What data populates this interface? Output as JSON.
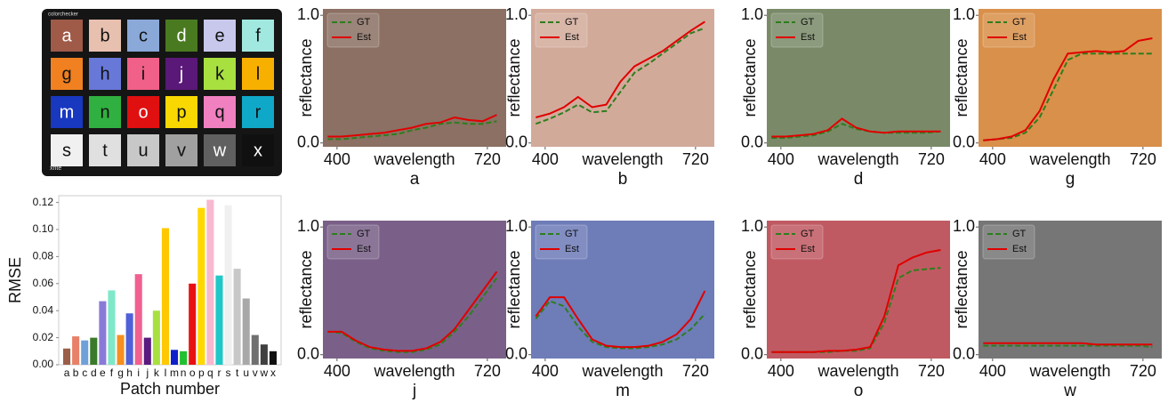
{
  "colorchecker": {
    "brand": "colorchecker",
    "logo": "xrite",
    "patches": [
      "a",
      "b",
      "c",
      "d",
      "e",
      "f",
      "g",
      "h",
      "i",
      "j",
      "k",
      "l",
      "m",
      "n",
      "o",
      "p",
      "q",
      "r",
      "s",
      "t",
      "u",
      "v",
      "w",
      "x"
    ],
    "colors": [
      "#a05a48",
      "#e8c0b0",
      "#8aa8d8",
      "#4a7a20",
      "#c8c8ec",
      "#a0e8e0",
      "#f08020",
      "#6878d8",
      "#f06088",
      "#5a1878",
      "#a8e040",
      "#f8b000",
      "#1838c0",
      "#30b040",
      "#e01010",
      "#f8d800",
      "#f080c0",
      "#10a8c8",
      "#f0f0f0",
      "#e0e0e0",
      "#c8c8c8",
      "#a0a0a0",
      "#606060",
      "#101010"
    ]
  },
  "chart_data": [
    {
      "type": "bar",
      "xlabel": "Patch number",
      "ylabel": "RMSE",
      "categories": [
        "a",
        "b",
        "c",
        "d",
        "e",
        "f",
        "g",
        "h",
        "i",
        "j",
        "k",
        "l",
        "m",
        "n",
        "o",
        "p",
        "q",
        "r",
        "s",
        "t",
        "u",
        "v",
        "w",
        "x"
      ],
      "values": [
        0.012,
        0.021,
        0.018,
        0.02,
        0.047,
        0.055,
        0.022,
        0.038,
        0.067,
        0.02,
        0.04,
        0.101,
        0.011,
        0.01,
        0.06,
        0.116,
        0.122,
        0.066,
        0.118,
        0.071,
        0.049,
        0.022,
        0.015,
        0.01
      ],
      "colors": [
        "#9b5e48",
        "#e8806a",
        "#70a0d8",
        "#3a7a2a",
        "#8a7ad8",
        "#7ee8c8",
        "#f59020",
        "#5060d8",
        "#f06090",
        "#5a1a80",
        "#a8e040",
        "#ffc800",
        "#1020c8",
        "#20c030",
        "#e81010",
        "#ffd800",
        "#f8b8d0",
        "#20c8c8",
        "#f0f0f0",
        "#c8c8c8",
        "#a8a8a8",
        "#707070",
        "#404040",
        "#101010"
      ],
      "ylim": [
        0,
        0.125
      ],
      "yticks": [
        {
          "value": 0,
          "label": "0.00"
        },
        {
          "value": 0.02,
          "label": "0.02"
        },
        {
          "value": 0.04,
          "label": "0.04"
        },
        {
          "value": 0.06,
          "label": "0.06"
        },
        {
          "value": 0.08,
          "label": "0.08"
        },
        {
          "value": 0.1,
          "label": "0.10"
        },
        {
          "value": 0.12,
          "label": "0.12"
        }
      ]
    },
    {
      "type": "line",
      "title": "a",
      "xlabel": "wavelength",
      "ylabel": "reflectance",
      "background": "#8b7063",
      "legend": "upper left",
      "x": [
        380,
        410,
        440,
        470,
        500,
        530,
        560,
        590,
        620,
        650,
        680,
        710,
        740
      ],
      "xlim": [
        370,
        760
      ],
      "xticks": [
        400,
        720
      ],
      "ylim": [
        -0.03,
        1.05
      ],
      "yticks": [
        {
          "value": 0,
          "label": "0.0"
        },
        {
          "value": 1,
          "label": "1.0"
        }
      ],
      "series": [
        {
          "name": "GT",
          "color": "#2e7d1e",
          "dash": true,
          "values": [
            0.03,
            0.03,
            0.04,
            0.05,
            0.06,
            0.07,
            0.1,
            0.12,
            0.15,
            0.16,
            0.15,
            0.15,
            0.17
          ]
        },
        {
          "name": "Est",
          "color": "#e00000",
          "dash": false,
          "values": [
            0.05,
            0.05,
            0.06,
            0.07,
            0.08,
            0.1,
            0.12,
            0.15,
            0.16,
            0.2,
            0.18,
            0.17,
            0.22
          ]
        }
      ]
    },
    {
      "type": "line",
      "title": "b",
      "xlabel": "wavelength",
      "ylabel": "reflectance",
      "background": "#d2aa9a",
      "legend": "upper left",
      "x": [
        380,
        410,
        440,
        470,
        500,
        530,
        560,
        590,
        620,
        650,
        680,
        710,
        740
      ],
      "xlim": [
        370,
        760
      ],
      "xticks": [
        400,
        720
      ],
      "ylim": [
        -0.03,
        1.05
      ],
      "yticks": [
        {
          "value": 0,
          "label": "0.0"
        },
        {
          "value": 1,
          "label": "1.0"
        }
      ],
      "series": [
        {
          "name": "GT",
          "color": "#2e7d1e",
          "dash": true,
          "values": [
            0.15,
            0.19,
            0.24,
            0.3,
            0.24,
            0.25,
            0.4,
            0.55,
            0.62,
            0.7,
            0.78,
            0.86,
            0.9
          ]
        },
        {
          "name": "Est",
          "color": "#e00000",
          "dash": false,
          "values": [
            0.2,
            0.23,
            0.28,
            0.36,
            0.28,
            0.3,
            0.48,
            0.6,
            0.66,
            0.72,
            0.8,
            0.88,
            0.95
          ]
        }
      ]
    },
    {
      "type": "line",
      "title": "d",
      "xlabel": "wavelength",
      "ylabel": "reflectance",
      "background": "#7a8a68",
      "legend": "upper left",
      "x": [
        380,
        410,
        440,
        470,
        500,
        530,
        560,
        590,
        620,
        650,
        680,
        710,
        740
      ],
      "xlim": [
        370,
        760
      ],
      "xticks": [
        400,
        720
      ],
      "ylim": [
        -0.03,
        1.05
      ],
      "yticks": [
        {
          "value": 0,
          "label": "0.0"
        },
        {
          "value": 1,
          "label": "1.0"
        }
      ],
      "series": [
        {
          "name": "GT",
          "color": "#2e7d1e",
          "dash": true,
          "values": [
            0.04,
            0.04,
            0.05,
            0.06,
            0.09,
            0.15,
            0.11,
            0.09,
            0.08,
            0.08,
            0.08,
            0.08,
            0.09
          ]
        },
        {
          "name": "Est",
          "color": "#e00000",
          "dash": false,
          "values": [
            0.05,
            0.05,
            0.06,
            0.07,
            0.1,
            0.19,
            0.12,
            0.09,
            0.08,
            0.09,
            0.09,
            0.09,
            0.09
          ]
        }
      ]
    },
    {
      "type": "line",
      "title": "g",
      "xlabel": "wavelength",
      "ylabel": "reflectance",
      "background": "#d9904a",
      "legend": "upper left",
      "x": [
        380,
        410,
        440,
        470,
        500,
        530,
        560,
        590,
        620,
        650,
        680,
        710,
        740
      ],
      "xlim": [
        370,
        760
      ],
      "xticks": [
        400,
        720
      ],
      "ylim": [
        -0.03,
        1.05
      ],
      "yticks": [
        {
          "value": 0,
          "label": "0.0"
        },
        {
          "value": 1,
          "label": "1.0"
        }
      ],
      "series": [
        {
          "name": "GT",
          "color": "#2e7d1e",
          "dash": true,
          "values": [
            0.02,
            0.03,
            0.04,
            0.08,
            0.2,
            0.42,
            0.65,
            0.7,
            0.7,
            0.7,
            0.7,
            0.7,
            0.7
          ]
        },
        {
          "name": "Est",
          "color": "#e00000",
          "dash": false,
          "values": [
            0.02,
            0.03,
            0.05,
            0.1,
            0.25,
            0.5,
            0.7,
            0.71,
            0.72,
            0.71,
            0.72,
            0.8,
            0.82
          ]
        }
      ]
    },
    {
      "type": "line",
      "title": "j",
      "xlabel": "wavelength",
      "ylabel": "reflectance",
      "background": "#7a6088",
      "legend": "upper left",
      "x": [
        380,
        410,
        440,
        470,
        500,
        530,
        560,
        590,
        620,
        650,
        680,
        710,
        740
      ],
      "xlim": [
        370,
        760
      ],
      "xticks": [
        400,
        720
      ],
      "ylim": [
        -0.03,
        1.05
      ],
      "yticks": [
        {
          "value": 0,
          "label": "0.0"
        },
        {
          "value": 1,
          "label": "1.0"
        }
      ],
      "series": [
        {
          "name": "GT",
          "color": "#2e7d1e",
          "dash": true,
          "values": [
            0.18,
            0.17,
            0.1,
            0.05,
            0.03,
            0.02,
            0.02,
            0.04,
            0.08,
            0.18,
            0.3,
            0.45,
            0.6
          ]
        },
        {
          "name": "Est",
          "color": "#e00000",
          "dash": false,
          "values": [
            0.18,
            0.18,
            0.11,
            0.06,
            0.04,
            0.03,
            0.03,
            0.05,
            0.1,
            0.2,
            0.35,
            0.5,
            0.65
          ]
        }
      ]
    },
    {
      "type": "line",
      "title": "m",
      "xlabel": "wavelength",
      "ylabel": "reflectance",
      "background": "#6e7cb8",
      "legend": "upper left",
      "x": [
        380,
        410,
        440,
        470,
        500,
        530,
        560,
        590,
        620,
        650,
        680,
        710,
        740
      ],
      "xlim": [
        370,
        760
      ],
      "xticks": [
        400,
        720
      ],
      "ylim": [
        -0.03,
        1.05
      ],
      "yticks": [
        {
          "value": 0,
          "label": "0.0"
        },
        {
          "value": 1,
          "label": "1.0"
        }
      ],
      "series": [
        {
          "name": "GT",
          "color": "#2e7d1e",
          "dash": true,
          "values": [
            0.28,
            0.42,
            0.38,
            0.22,
            0.1,
            0.06,
            0.05,
            0.05,
            0.06,
            0.08,
            0.12,
            0.2,
            0.32
          ]
        },
        {
          "name": "Est",
          "color": "#e00000",
          "dash": false,
          "values": [
            0.3,
            0.45,
            0.45,
            0.28,
            0.12,
            0.07,
            0.06,
            0.06,
            0.07,
            0.1,
            0.16,
            0.28,
            0.5
          ]
        }
      ]
    },
    {
      "type": "line",
      "title": "o",
      "xlabel": "wavelength",
      "ylabel": "reflectance",
      "background": "#c05a62",
      "legend": "upper left",
      "x": [
        380,
        410,
        440,
        470,
        500,
        530,
        560,
        590,
        620,
        650,
        680,
        710,
        740
      ],
      "xlim": [
        370,
        760
      ],
      "xticks": [
        400,
        720
      ],
      "ylim": [
        -0.03,
        1.05
      ],
      "yticks": [
        {
          "value": 0,
          "label": "0.0"
        },
        {
          "value": 1,
          "label": "1.0"
        }
      ],
      "series": [
        {
          "name": "GT",
          "color": "#2e7d1e",
          "dash": true,
          "values": [
            0.02,
            0.02,
            0.02,
            0.02,
            0.02,
            0.03,
            0.03,
            0.05,
            0.25,
            0.6,
            0.66,
            0.67,
            0.68
          ]
        },
        {
          "name": "Est",
          "color": "#e00000",
          "dash": false,
          "values": [
            0.02,
            0.02,
            0.02,
            0.02,
            0.03,
            0.03,
            0.04,
            0.06,
            0.3,
            0.7,
            0.76,
            0.8,
            0.82
          ]
        }
      ]
    },
    {
      "type": "line",
      "title": "w",
      "xlabel": "wavelength",
      "ylabel": "reflectance",
      "background": "#767676",
      "legend": "upper left",
      "x": [
        380,
        410,
        440,
        470,
        500,
        530,
        560,
        590,
        620,
        650,
        680,
        710,
        740
      ],
      "xlim": [
        370,
        760
      ],
      "xticks": [
        400,
        720
      ],
      "ylim": [
        -0.03,
        1.05
      ],
      "yticks": [
        {
          "value": 0,
          "label": "0.0"
        },
        {
          "value": 1,
          "label": "1.0"
        }
      ],
      "series": [
        {
          "name": "GT",
          "color": "#2e7d1e",
          "dash": true,
          "values": [
            0.07,
            0.07,
            0.07,
            0.07,
            0.07,
            0.07,
            0.07,
            0.07,
            0.07,
            0.07,
            0.07,
            0.07,
            0.06
          ]
        },
        {
          "name": "Est",
          "color": "#e00000",
          "dash": false,
          "values": [
            0.09,
            0.09,
            0.09,
            0.09,
            0.09,
            0.09,
            0.09,
            0.09,
            0.08,
            0.08,
            0.08,
            0.08,
            0.08
          ]
        }
      ]
    }
  ]
}
